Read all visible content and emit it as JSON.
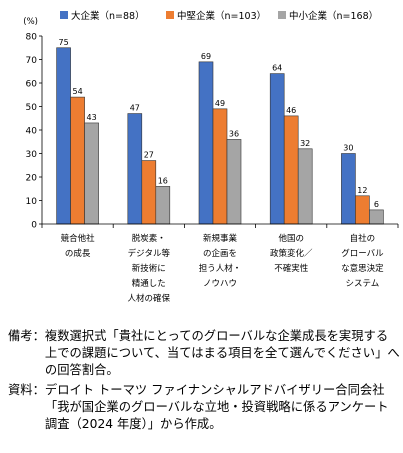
{
  "chart_data": {
    "type": "bar",
    "y_unit": "(%)",
    "ylim": [
      0,
      80
    ],
    "yticks": [
      0,
      10,
      20,
      30,
      40,
      50,
      60,
      70,
      80
    ],
    "categories": [
      [
        "競合他社",
        "の成長"
      ],
      [
        "脱炭素・",
        "デジタル等",
        "新技術に",
        "精通した",
        "人材の確保"
      ],
      [
        "新規事業",
        "の企画を",
        "担う人材・",
        "ノウハウ"
      ],
      [
        "他国の",
        "政策変化／",
        "不確実性"
      ],
      [
        "自社の",
        "グローバル",
        "な意思決定",
        "システム"
      ]
    ],
    "series": [
      {
        "name": "大企業（n=88）",
        "color": "#4472C4",
        "values": [
          75,
          47,
          69,
          64,
          30
        ]
      },
      {
        "name": "中堅企業（n=103）",
        "color": "#ED7D31",
        "values": [
          54,
          27,
          49,
          46,
          12
        ]
      },
      {
        "name": "中小企業（n=168）",
        "color": "#A5A5A5",
        "values": [
          43,
          16,
          36,
          32,
          6
        ]
      }
    ],
    "legend_position": "top",
    "grid": false
  },
  "notes": [
    {
      "label": "備考：",
      "text": "複数選択式「貴社にとってのグローバルな企業成長を実現する上での課題について、当てはまる項目を全て選んでください」への回答割合。"
    },
    {
      "label": "資料：",
      "text": "デロイト トーマツ ファイナンシャルアドバイザリー合同会社「我が国企業のグローバルな立地・投資戦略に係るアンケート調査（2024 年度）」から作成。"
    }
  ]
}
